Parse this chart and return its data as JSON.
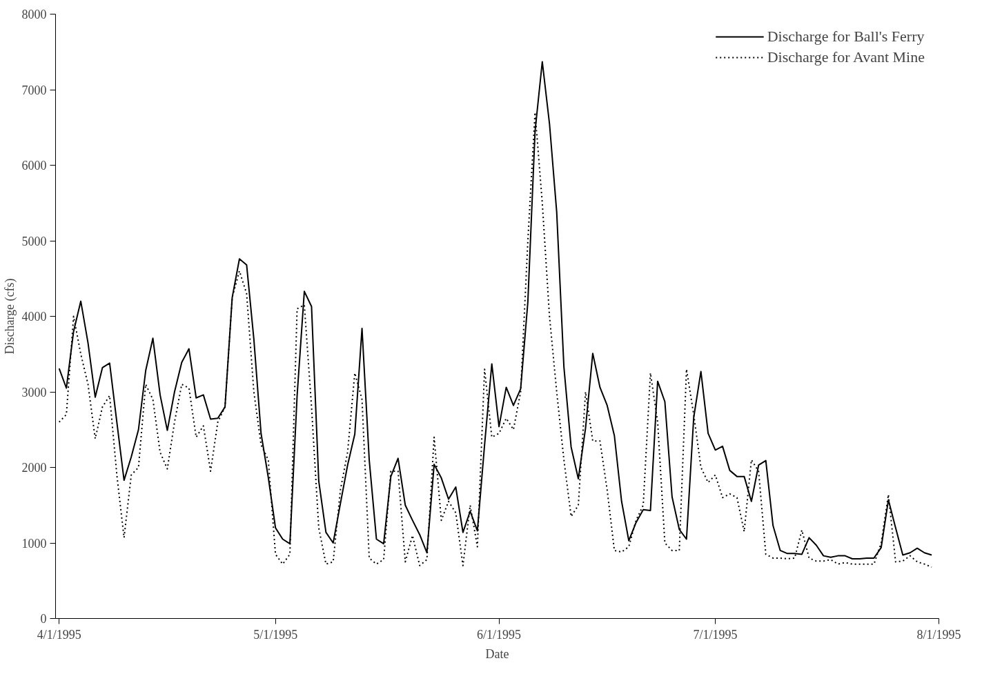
{
  "chart_data": {
    "type": "line",
    "xlabel": "Date",
    "ylabel": "Discharge (cfs)",
    "x": [
      "1995-04-01",
      "1995-04-02",
      "1995-04-03",
      "1995-04-04",
      "1995-04-05",
      "1995-04-06",
      "1995-04-07",
      "1995-04-08",
      "1995-04-09",
      "1995-04-10",
      "1995-04-11",
      "1995-04-12",
      "1995-04-13",
      "1995-04-14",
      "1995-04-15",
      "1995-04-16",
      "1995-04-17",
      "1995-04-18",
      "1995-04-19",
      "1995-04-20",
      "1995-04-21",
      "1995-04-22",
      "1995-04-23",
      "1995-04-24",
      "1995-04-25",
      "1995-04-26",
      "1995-04-27",
      "1995-04-28",
      "1995-04-29",
      "1995-04-30",
      "1995-05-01",
      "1995-05-02",
      "1995-05-03",
      "1995-05-04",
      "1995-05-05",
      "1995-05-06",
      "1995-05-07",
      "1995-05-08",
      "1995-05-09",
      "1995-05-10",
      "1995-05-11",
      "1995-05-12",
      "1995-05-13",
      "1995-05-14",
      "1995-05-15",
      "1995-05-16",
      "1995-05-17",
      "1995-05-18",
      "1995-05-19",
      "1995-05-20",
      "1995-05-21",
      "1995-05-22",
      "1995-05-23",
      "1995-05-24",
      "1995-05-25",
      "1995-05-26",
      "1995-05-27",
      "1995-05-28",
      "1995-05-29",
      "1995-05-30",
      "1995-05-31",
      "1995-06-01",
      "1995-06-02",
      "1995-06-03",
      "1995-06-04",
      "1995-06-05",
      "1995-06-06",
      "1995-06-07",
      "1995-06-08",
      "1995-06-09",
      "1995-06-10",
      "1995-06-11",
      "1995-06-12",
      "1995-06-13",
      "1995-06-14",
      "1995-06-15",
      "1995-06-16",
      "1995-06-17",
      "1995-06-18",
      "1995-06-19",
      "1995-06-20",
      "1995-06-21",
      "1995-06-22",
      "1995-06-23",
      "1995-06-24",
      "1995-06-25",
      "1995-06-26",
      "1995-06-27",
      "1995-06-28",
      "1995-06-29",
      "1995-06-30",
      "1995-07-01",
      "1995-07-02",
      "1995-07-03",
      "1995-07-04",
      "1995-07-05",
      "1995-07-06",
      "1995-07-07",
      "1995-07-08",
      "1995-07-09",
      "1995-07-10",
      "1995-07-11",
      "1995-07-12",
      "1995-07-13",
      "1995-07-14",
      "1995-07-15",
      "1995-07-16",
      "1995-07-17",
      "1995-07-18",
      "1995-07-19",
      "1995-07-20",
      "1995-07-21",
      "1995-07-22",
      "1995-07-23",
      "1995-07-24",
      "1995-07-25",
      "1995-07-26",
      "1995-07-27",
      "1995-07-28",
      "1995-07-29",
      "1995-07-30",
      "1995-07-31"
    ],
    "series": [
      {
        "name": "Discharge for Ball's Ferry",
        "color": "#000000",
        "line_style": "solid",
        "values": [
          3310,
          3050,
          3800,
          4200,
          3650,
          2930,
          3320,
          3380,
          2600,
          1830,
          2140,
          2500,
          3280,
          3710,
          2960,
          2490,
          3000,
          3390,
          3570,
          2920,
          2960,
          2640,
          2650,
          2800,
          4250,
          4760,
          4680,
          3700,
          2450,
          1870,
          1200,
          1050,
          990,
          2950,
          4330,
          4130,
          1820,
          1140,
          1000,
          1520,
          2030,
          2440,
          3840,
          2100,
          1050,
          990,
          1880,
          2120,
          1500,
          1300,
          1110,
          870,
          2040,
          1860,
          1580,
          1740,
          1140,
          1420,
          1160,
          2300,
          3370,
          2540,
          3060,
          2820,
          3040,
          4190,
          6450,
          7370,
          6550,
          5380,
          3330,
          2270,
          1850,
          2520,
          3510,
          3060,
          2820,
          2420,
          1550,
          1030,
          1270,
          1440,
          1430,
          3140,
          2870,
          1610,
          1180,
          1050,
          2660,
          3270,
          2450,
          2230,
          2280,
          1960,
          1880,
          1880,
          1550,
          2030,
          2090,
          1230,
          900,
          860,
          860,
          850,
          1070,
          970,
          830,
          810,
          830,
          830,
          790,
          790,
          800,
          800,
          940,
          1570,
          1200,
          840,
          870,
          930,
          870,
          840
        ]
      },
      {
        "name": "Discharge for Avant Mine",
        "color": "#000000",
        "line_style": "dotted",
        "values": [
          2600,
          2700,
          4000,
          3500,
          3100,
          2380,
          2800,
          2950,
          1900,
          1070,
          1900,
          2000,
          3100,
          2900,
          2200,
          1980,
          2600,
          3100,
          3050,
          2400,
          2550,
          1950,
          2600,
          2800,
          4250,
          4600,
          4300,
          3000,
          2300,
          2100,
          850,
          720,
          850,
          4100,
          4150,
          2800,
          1200,
          720,
          750,
          1700,
          2200,
          3250,
          2900,
          800,
          720,
          780,
          1950,
          1950,
          750,
          1100,
          700,
          780,
          2400,
          1300,
          1550,
          1400,
          700,
          1500,
          950,
          3300,
          2400,
          2450,
          2650,
          2500,
          3000,
          5000,
          6700,
          5500,
          4000,
          3000,
          2100,
          1350,
          1500,
          3000,
          2350,
          2350,
          1700,
          900,
          880,
          950,
          1300,
          1500,
          3250,
          2600,
          1000,
          900,
          900,
          3300,
          2700,
          2000,
          1800,
          1900,
          1600,
          1650,
          1600,
          1150,
          2100,
          1950,
          850,
          800,
          800,
          790,
          800,
          1170,
          800,
          760,
          760,
          780,
          720,
          740,
          720,
          720,
          720,
          720,
          1000,
          1640,
          750,
          760,
          830,
          750,
          720,
          680
        ]
      }
    ],
    "xlim": [
      "1995-03-31T12:00",
      "1995-08-01"
    ],
    "xticks": [
      {
        "value": "1995-04-01",
        "label": "4/1/1995"
      },
      {
        "value": "1995-05-01",
        "label": "5/1/1995"
      },
      {
        "value": "1995-06-01",
        "label": "6/1/1995"
      },
      {
        "value": "1995-07-01",
        "label": "7/1/1995"
      },
      {
        "value": "1995-08-01",
        "label": "8/1/1995"
      }
    ],
    "ylim": [
      0,
      8000
    ],
    "yticks": [
      0,
      1000,
      2000,
      3000,
      4000,
      5000,
      6000,
      7000,
      8000
    ],
    "legend": "top right",
    "grid": false
  }
}
